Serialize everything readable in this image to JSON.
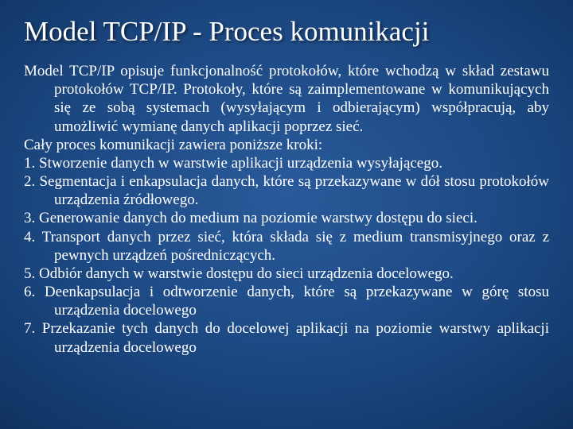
{
  "title": "Model TCP/IP - Proces komunikacji",
  "intro": "Model TCP/IP opisuje funkcjonalność protokołów, które wchodzą w skład zestawu protokołów TCP/IP. Protokoły, które są zaimplementowane w komunikujących się ze sobą systemach (wysyłającym i odbierającym) współpracują, aby umożliwić wymianę danych aplikacji poprzez sieć.",
  "steps_heading": "Cały proces komunikacji zawiera poniższe kroki:",
  "step1": "1. Stworzenie danych w warstwie aplikacji urządzenia wysyłającego.",
  "step2": "2. Segmentacja i enkapsulacja danych, które są przekazywane w dół stosu protokołów urządzenia źródłowego.",
  "step3": "3. Generowanie danych do medium na poziomie warstwy dostępu do sieci.",
  "step4": "4. Transport danych przez sieć, która składa się z medium transmisyjnego oraz z pewnych urządzeń pośredniczących.",
  "step5": "5. Odbiór danych w warstwie dostępu do sieci urządzenia docelowego.",
  "step6": "6. Deenkapsulacja i odtworzenie danych, które są przekazywane w górę stosu urządzenia docelowego",
  "step7": "7. Przekazanie tych danych do docelowej aplikacji na poziomie warstwy aplikacji urządzenia docelowego",
  "colors": {
    "text": "#ffffff",
    "bg_center": "#2a5a9a",
    "bg_edge": "#041530"
  },
  "typography": {
    "title_fontsize": 35,
    "body_fontsize": 19,
    "font_family": "Times New Roman"
  }
}
